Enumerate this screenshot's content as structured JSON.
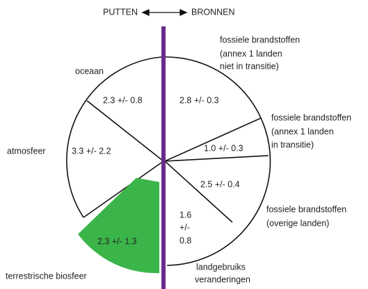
{
  "header": {
    "left": "PUTTEN",
    "right": "BRONNEN"
  },
  "sinks": [
    {
      "label": [
        "oceaan"
      ],
      "value": [
        "2.3 +/- 0.8"
      ]
    },
    {
      "label": [
        "atmosfeer"
      ],
      "value": [
        "3.3 +/- 2.2"
      ]
    },
    {
      "label": [
        "terrestrische biosfeer"
      ],
      "value": [
        "2.3 +/- 1.3"
      ]
    }
  ],
  "sources": [
    {
      "label": [
        "fossiele brandstoffen",
        "(annex 1 landen",
        "niet in transitie)"
      ],
      "value": [
        "2.8 +/- 0.3"
      ]
    },
    {
      "label": [
        "fossiele brandstoffen",
        "(annex 1 landen",
        "in transitie)"
      ],
      "value": [
        "1.0 +/- 0.3"
      ]
    },
    {
      "label": [
        "fossiele brandstoffen",
        "(overige landen)"
      ],
      "value": [
        "2.5 +/- 0.4"
      ]
    },
    {
      "label": [
        "landgebruiks",
        "veranderingen"
      ],
      "value": [
        "1.6",
        "+/-",
        "0.8"
      ]
    }
  ]
}
